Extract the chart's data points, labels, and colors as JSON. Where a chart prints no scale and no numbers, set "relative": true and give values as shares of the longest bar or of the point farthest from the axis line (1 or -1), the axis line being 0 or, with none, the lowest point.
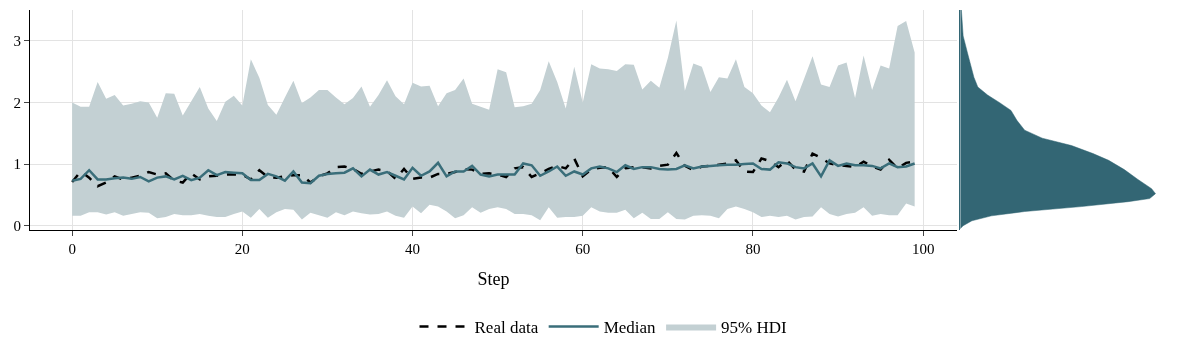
{
  "chart_data": [
    {
      "type": "line",
      "xlabel": "Step",
      "xlim": [
        -4.95,
        103.95
      ],
      "ylim": [
        -0.07,
        3.5
      ],
      "xticks": [
        0,
        20,
        40,
        60,
        80,
        100
      ],
      "yticks": [
        0,
        1,
        2,
        3
      ],
      "grid": true,
      "legend": "bottom",
      "x": [
        0,
        1,
        2,
        3,
        4,
        5,
        6,
        7,
        8,
        9,
        10,
        11,
        12,
        13,
        14,
        15,
        16,
        17,
        18,
        19,
        20,
        21,
        22,
        23,
        24,
        25,
        26,
        27,
        28,
        29,
        30,
        31,
        32,
        33,
        34,
        35,
        36,
        37,
        38,
        39,
        40,
        41,
        42,
        43,
        44,
        45,
        46,
        47,
        48,
        49,
        50,
        51,
        52,
        53,
        54,
        55,
        56,
        57,
        58,
        59,
        60,
        61,
        62,
        63,
        64,
        65,
        66,
        67,
        68,
        69,
        70,
        71,
        72,
        73,
        74,
        75,
        76,
        77,
        78,
        79,
        80,
        81,
        82,
        83,
        84,
        85,
        86,
        87,
        88,
        89,
        90,
        91,
        92,
        93,
        94,
        95,
        96,
        97,
        98,
        99
      ],
      "series": [
        {
          "name": "95% HDI",
          "type": "area",
          "color": "#c3d0d3",
          "values": [
            null,
            null,
            null,
            null,
            null,
            null,
            null,
            null,
            null,
            null,
            null,
            null,
            null,
            null,
            null,
            null,
            null,
            null,
            null,
            null,
            null,
            null,
            null,
            null,
            null,
            null,
            null,
            null,
            null,
            null,
            null,
            null,
            null,
            null,
            null,
            null,
            null,
            null,
            null,
            null,
            null,
            null,
            null,
            null,
            null,
            null,
            null,
            null,
            null,
            null,
            null,
            null,
            null,
            null,
            null,
            null,
            null,
            null,
            null,
            null,
            null,
            null,
            null,
            null,
            null,
            null,
            null,
            null,
            null,
            null,
            null,
            null,
            null,
            null,
            null,
            null,
            null,
            null,
            null,
            null,
            null,
            null,
            null,
            null,
            null,
            null,
            null,
            null,
            null,
            null,
            null,
            null,
            null,
            null,
            null,
            null,
            null,
            null,
            null,
            null
          ],
          "upper": [
            2.0,
            1.93,
            1.93,
            2.33,
            2.06,
            2.12,
            1.95,
            1.98,
            2.02,
            2.0,
            1.75,
            2.15,
            2.14,
            1.79,
            2.02,
            2.25,
            1.9,
            1.7,
            2.01,
            2.11,
            1.95,
            2.7,
            2.4,
            1.96,
            1.8,
            2.08,
            2.35,
            1.99,
            2.08,
            2.2,
            2.2,
            2.08,
            1.97,
            2.07,
            2.26,
            1.93,
            2.12,
            2.36,
            2.1,
            1.97,
            2.32,
            2.26,
            2.27,
            1.94,
            2.15,
            2.2,
            2.39,
            1.98,
            1.93,
            1.88,
            2.54,
            2.49,
            1.92,
            1.94,
            1.98,
            2.2,
            2.67,
            2.33,
            1.9,
            2.58,
            2.0,
            2.62,
            2.55,
            2.54,
            2.51,
            2.62,
            2.61,
            2.21,
            2.35,
            2.24,
            2.72,
            3.33,
            2.19,
            2.63,
            2.58,
            2.17,
            2.41,
            2.39,
            2.7,
            2.25,
            2.15,
            1.95,
            1.84,
            2.08,
            2.37,
            2.02,
            2.38,
            2.75,
            2.29,
            2.25,
            2.6,
            2.65,
            2.07,
            2.76,
            2.2,
            2.6,
            2.55,
            3.24,
            3.32,
            2.81
          ],
          "lower": [
            0.16,
            0.16,
            0.22,
            0.22,
            0.18,
            0.22,
            0.16,
            0.19,
            0.22,
            0.21,
            0.12,
            0.14,
            0.19,
            0.17,
            0.17,
            0.19,
            0.16,
            0.14,
            0.14,
            0.19,
            0.23,
            0.13,
            0.27,
            0.13,
            0.22,
            0.27,
            0.26,
            0.1,
            0.21,
            0.17,
            0.13,
            0.22,
            0.17,
            0.23,
            0.2,
            0.18,
            0.19,
            0.23,
            0.16,
            0.13,
            0.31,
            0.2,
            0.34,
            0.31,
            0.23,
            0.12,
            0.17,
            0.3,
            0.21,
            0.27,
            0.3,
            0.27,
            0.19,
            0.19,
            0.17,
            0.09,
            0.3,
            0.13,
            0.14,
            0.14,
            0.16,
            0.3,
            0.23,
            0.21,
            0.21,
            0.26,
            0.12,
            0.21,
            0.11,
            0.11,
            0.22,
            0.11,
            0.1,
            0.16,
            0.17,
            0.16,
            0.12,
            0.27,
            0.31,
            0.27,
            0.22,
            0.14,
            0.16,
            0.14,
            0.16,
            0.1,
            0.14,
            0.15,
            0.3,
            0.19,
            0.15,
            0.19,
            0.21,
            0.3,
            0.16,
            0.19,
            0.17,
            0.17,
            0.36,
            0.31
          ]
        },
        {
          "name": "Real data",
          "type": "line",
          "color": "#000000",
          "line_style": "dashed",
          "values": [
            0.71,
            0.88,
            0.78,
            0.64,
            0.7,
            0.8,
            0.75,
            0.78,
            0.81,
            0.87,
            0.83,
            0.85,
            0.73,
            0.7,
            0.85,
            0.75,
            0.8,
            0.81,
            0.83,
            0.83,
            0.83,
            0.75,
            0.9,
            0.79,
            0.78,
            0.8,
            0.82,
            0.82,
            0.7,
            0.8,
            0.85,
            0.95,
            0.96,
            0.92,
            0.84,
            0.88,
            0.91,
            0.89,
            0.76,
            0.92,
            0.76,
            0.78,
            0.78,
            0.84,
            0.84,
            0.87,
            0.92,
            0.91,
            0.84,
            0.85,
            0.83,
            0.79,
            0.93,
            0.95,
            0.79,
            0.85,
            0.92,
            0.97,
            0.93,
            1.09,
            0.8,
            0.91,
            0.94,
            0.95,
            0.79,
            0.93,
            0.95,
            0.95,
            0.93,
            0.97,
            0.99,
            1.18,
            0.97,
            0.9,
            0.96,
            0.97,
            0.99,
            1.01,
            1.06,
            0.88,
            0.87,
            1.09,
            1.05,
            0.95,
            1.06,
            0.91,
            0.88,
            1.17,
            1.1,
            1.01,
            0.98,
            0.97,
            0.95,
            1.04,
            0.96,
            0.91,
            1.07,
            0.93,
            1.02,
            1.04
          ]
        },
        {
          "name": "Median",
          "type": "line",
          "color": "#3a6e7a",
          "line_style": "solid",
          "values": [
            0.73,
            0.76,
            0.9,
            0.75,
            0.75,
            0.77,
            0.78,
            0.76,
            0.79,
            0.72,
            0.78,
            0.8,
            0.75,
            0.81,
            0.74,
            0.78,
            0.9,
            0.82,
            0.87,
            0.86,
            0.85,
            0.74,
            0.74,
            0.84,
            0.8,
            0.73,
            0.88,
            0.7,
            0.69,
            0.81,
            0.84,
            0.85,
            0.86,
            0.93,
            0.8,
            0.91,
            0.83,
            0.87,
            0.81,
            0.75,
            0.94,
            0.81,
            0.88,
            1.02,
            0.8,
            0.88,
            0.88,
            0.97,
            0.83,
            0.8,
            0.83,
            0.83,
            0.83,
            1.01,
            0.98,
            0.81,
            0.88,
            0.96,
            0.81,
            0.88,
            0.83,
            0.93,
            0.96,
            0.93,
            0.87,
            0.98,
            0.92,
            0.95,
            0.95,
            0.92,
            0.91,
            0.92,
            0.98,
            0.93,
            0.96,
            0.97,
            0.98,
            0.99,
            0.99,
            1.0,
            1.01,
            0.92,
            0.91,
            1.03,
            1.01,
            0.95,
            0.93,
            1.01,
            0.8,
            1.06,
            0.97,
            1.01,
            0.98,
            0.98,
            0.97,
            0.93,
            1.01,
            0.95,
            0.96,
            1.01
          ]
        }
      ]
    },
    {
      "type": "area",
      "orientation": "horizontal",
      "relative": true,
      "ylim": [
        -0.07,
        3.5
      ],
      "tick_labels": false,
      "color": "#336674",
      "x": [
        -0.05,
        0.0,
        0.08,
        0.16,
        0.23,
        0.31,
        0.39,
        0.44,
        0.52,
        0.6,
        0.75,
        0.91,
        1.06,
        1.17,
        1.3,
        1.42,
        1.55,
        1.71,
        1.87,
        2.0,
        2.12,
        2.25,
        2.41,
        2.77,
        3.08,
        3.5
      ],
      "values": [
        0.0,
        0.015,
        0.06,
        0.16,
        0.33,
        0.62,
        0.86,
        0.97,
        1.0,
        0.98,
        0.91,
        0.84,
        0.76,
        0.68,
        0.57,
        0.42,
        0.33,
        0.29,
        0.26,
        0.2,
        0.14,
        0.09,
        0.07,
        0.04,
        0.015,
        0.006
      ]
    }
  ]
}
